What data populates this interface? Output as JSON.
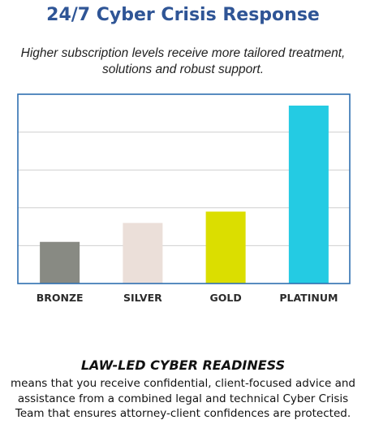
{
  "header": {
    "title": "24/7 Cyber Crisis Response",
    "subtitle": "Higher subscription levels receive more tailored treatment, solutions and robust support."
  },
  "chart_data": {
    "type": "bar",
    "categories": [
      "BRONZE",
      "SILVER",
      "GOLD",
      "PLATINUM"
    ],
    "values": [
      1.1,
      1.6,
      1.9,
      4.7
    ],
    "ylim": [
      0,
      5
    ],
    "grid": true,
    "colors": [
      "#888a83",
      "#ebdfd9",
      "#dbde00",
      "#24cbe3"
    ],
    "border_color": "#2f6fb0",
    "grid_color": "#cfcfcf"
  },
  "footer": {
    "heading": "LAW-LED CYBER READINESS",
    "body": "means that you receive confidential, client-focused advice and assistance from a combined legal and technical Cyber Crisis Team that ensures attorney-client confidences are protected."
  }
}
